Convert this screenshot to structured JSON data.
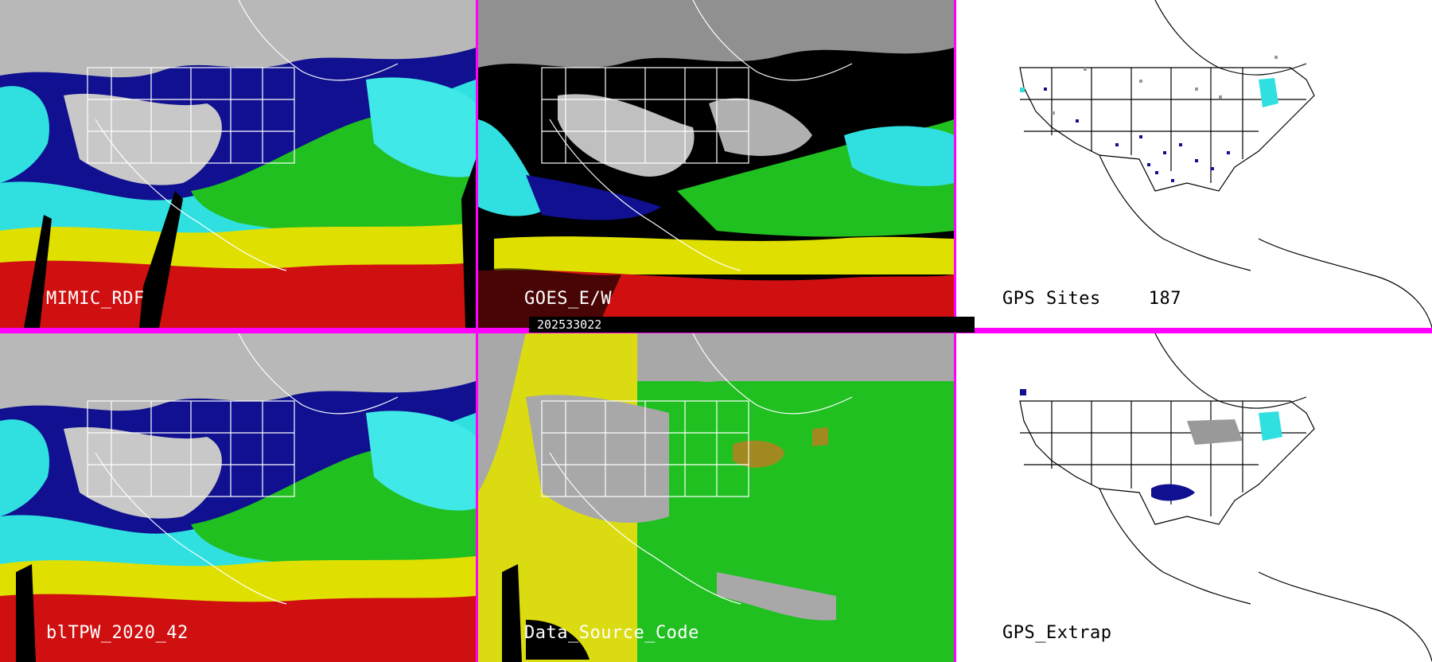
{
  "panels": [
    {
      "label": "MIMIC_RDF"
    },
    {
      "label": "GOES_E/W"
    },
    {
      "label": "GPS Sites",
      "count": "187"
    },
    {
      "label": "blTPW_2020_42"
    },
    {
      "label": "Data_Source_Code"
    },
    {
      "label": "GPS_Extrap"
    }
  ],
  "timestamp": "202533022",
  "colors": {
    "divider": "#ff00ff",
    "grey_cloud": "#b0b0b0",
    "dark_blue": "#101090",
    "blue": "#2040c0",
    "cyan": "#30e0e0",
    "green": "#20c020",
    "yellow": "#e0e000",
    "red": "#d01010",
    "olive": "#a08a20",
    "gray_bg": "#a8a8a8"
  }
}
